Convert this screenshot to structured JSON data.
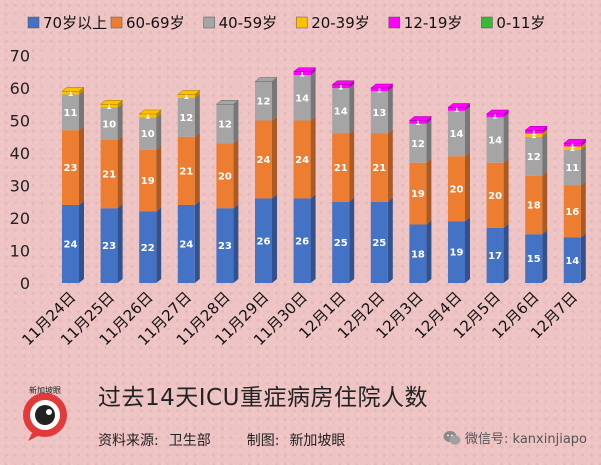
{
  "chart_data": {
    "type": "bar",
    "stacked": true,
    "title": "过去14天ICU重症病房住院人数",
    "categories": [
      "11月24日",
      "11月25日",
      "11月26日",
      "11月27日",
      "11月28日",
      "11月29日",
      "11月30日",
      "12月1日",
      "12月2日",
      "12月3日",
      "12月4日",
      "12月5日",
      "12月6日",
      "12月7日"
    ],
    "series": [
      {
        "name": "70岁以上",
        "color": "#4472c4",
        "values": [
          24,
          23,
          22,
          24,
          23,
          26,
          26,
          25,
          25,
          18,
          19,
          17,
          15,
          14
        ]
      },
      {
        "name": "60-69岁",
        "color": "#ed7d31",
        "values": [
          23,
          21,
          19,
          21,
          20,
          24,
          24,
          21,
          21,
          19,
          20,
          20,
          18,
          16
        ]
      },
      {
        "name": "40-59岁",
        "color": "#a5a5a5",
        "values": [
          11,
          10,
          10,
          12,
          12,
          12,
          14,
          14,
          13,
          12,
          14,
          14,
          12,
          11
        ]
      },
      {
        "name": "20-39岁",
        "color": "#ffc000",
        "values": [
          1,
          1,
          1,
          1,
          0,
          0,
          0,
          0,
          0,
          0,
          0,
          0,
          1,
          1
        ]
      },
      {
        "name": "12-19岁",
        "color": "#ff00ff",
        "values": [
          0,
          0,
          0,
          0,
          0,
          0,
          1,
          1,
          1,
          1,
          1,
          1,
          1,
          1
        ]
      },
      {
        "name": "0-11岁",
        "color": "#33bb33",
        "values": [
          0,
          0,
          0,
          0,
          0,
          0,
          0,
          0,
          0,
          0,
          0,
          0,
          0,
          0
        ]
      }
    ],
    "ylim": [
      0,
      70
    ],
    "yticks": [
      0,
      10,
      20,
      30,
      40,
      50,
      60,
      70
    ],
    "grid": false,
    "legend_position": "top"
  },
  "footer": {
    "title": "过去14天ICU重症病房住院人数",
    "source_label": "资料来源:",
    "source_value": "卫生部",
    "made_label": "制图:",
    "made_value": "新加坡眼",
    "logo_text": "新加坡眼",
    "wechat_label": "微信号: kanxinjiapo"
  }
}
